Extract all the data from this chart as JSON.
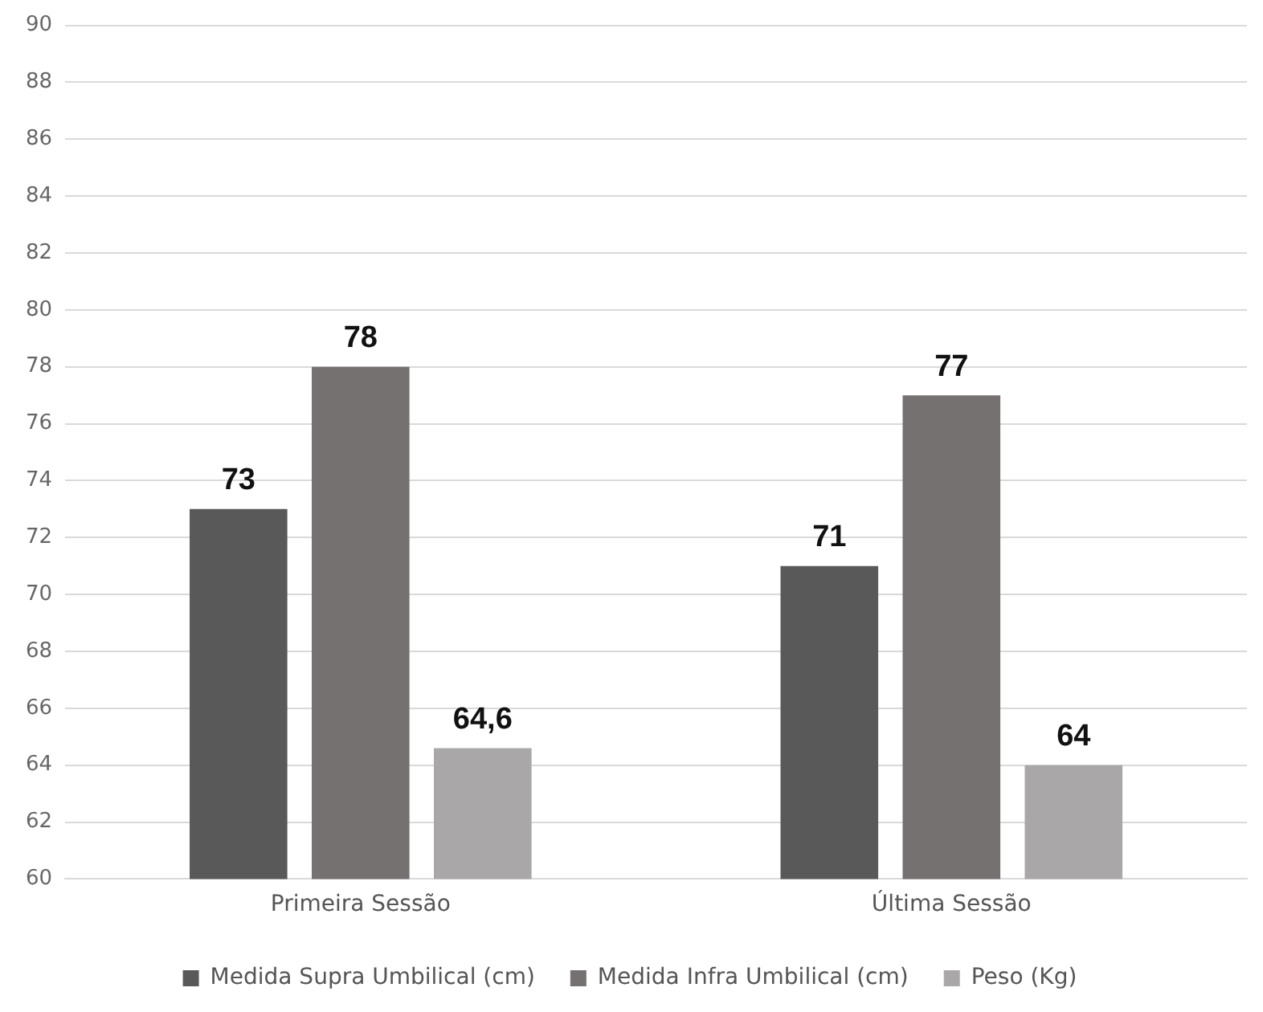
{
  "chart_data": {
    "type": "bar",
    "categories": [
      "Primeira Sessão",
      "Última Sessão"
    ],
    "series": [
      {
        "name": "Medida Supra Umbilical (cm)",
        "color": "#595959",
        "values": [
          73,
          71
        ],
        "value_labels": [
          "73",
          "71"
        ]
      },
      {
        "name": "Medida Infra Umbilical (cm)",
        "color": "#767171",
        "values": [
          78,
          77
        ],
        "value_labels": [
          "78",
          "77"
        ]
      },
      {
        "name": "Peso (Kg)",
        "color": "#a9a7a7",
        "values": [
          64.6,
          64
        ],
        "value_labels": [
          "64,6",
          "64"
        ]
      }
    ],
    "ylim": [
      60,
      90
    ],
    "yticks": [
      60,
      62,
      64,
      66,
      68,
      70,
      72,
      74,
      76,
      78,
      80,
      82,
      84,
      86,
      88,
      90
    ],
    "grid": "y",
    "legend": "bottom"
  }
}
